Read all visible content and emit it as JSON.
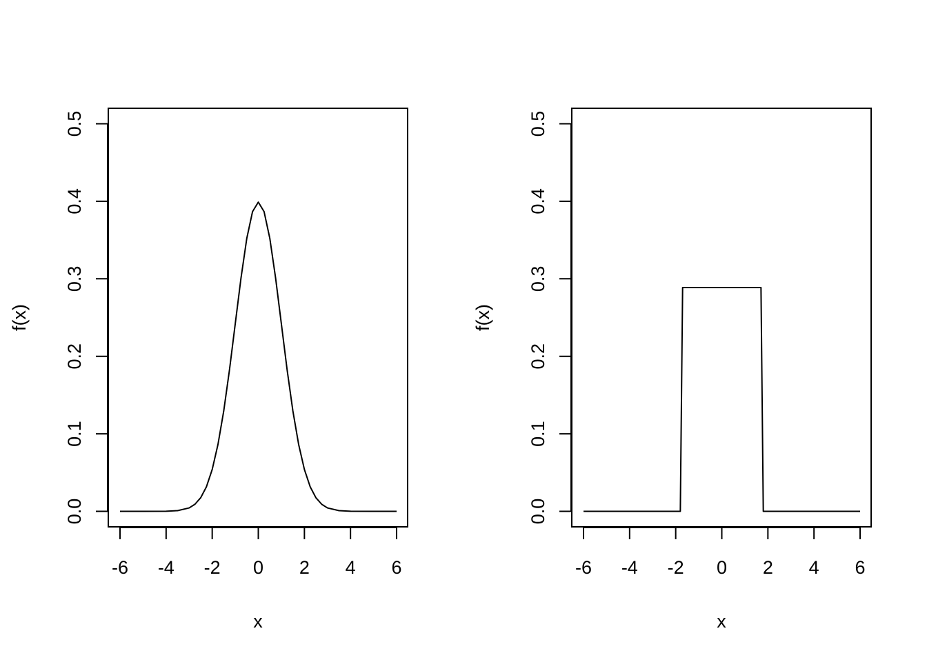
{
  "chart_data": [
    {
      "type": "line",
      "xlabel": "x",
      "ylabel": "f(x)",
      "xlim": [
        -6,
        6
      ],
      "ylim": [
        0,
        0.5
      ],
      "xticks": [
        "-6",
        "-4",
        "-2",
        "0",
        "2",
        "4",
        "6"
      ],
      "yticks": [
        "0.0",
        "0.1",
        "0.2",
        "0.3",
        "0.4",
        "0.5"
      ],
      "grid": false,
      "series": [
        {
          "x": [
            -6,
            -5,
            -4,
            -3.5,
            -3,
            -2.75,
            -2.5,
            -2.25,
            -2,
            -1.75,
            -1.5,
            -1.25,
            -1,
            -0.75,
            -0.5,
            -0.25,
            0,
            0.25,
            0.5,
            0.75,
            1,
            1.25,
            1.5,
            1.75,
            2,
            2.25,
            2.5,
            2.75,
            3,
            3.5,
            4,
            5,
            6
          ],
          "y": [
            0.0,
            0.0,
            0.0001,
            0.0009,
            0.0044,
            0.0091,
            0.0175,
            0.0317,
            0.054,
            0.0863,
            0.1295,
            0.1826,
            0.242,
            0.3011,
            0.3521,
            0.3867,
            0.3989,
            0.3867,
            0.3521,
            0.3011,
            0.242,
            0.1826,
            0.1295,
            0.0863,
            0.054,
            0.0317,
            0.0175,
            0.0091,
            0.0044,
            0.0009,
            0.0001,
            0.0,
            0.0
          ]
        }
      ]
    },
    {
      "type": "line",
      "xlabel": "x",
      "ylabel": "f(x)",
      "xlim": [
        -6,
        6
      ],
      "ylim": [
        0,
        0.5
      ],
      "xticks": [
        "-6",
        "-4",
        "-2",
        "0",
        "2",
        "4",
        "6"
      ],
      "yticks": [
        "0.0",
        "0.1",
        "0.2",
        "0.3",
        "0.4",
        "0.5"
      ],
      "grid": false,
      "series": [
        {
          "x": [
            -6,
            -1.8,
            -1.7,
            1.7,
            1.8,
            6
          ],
          "y": [
            0.0,
            0.0,
            0.2887,
            0.2887,
            0.0,
            0.0
          ]
        }
      ]
    }
  ]
}
